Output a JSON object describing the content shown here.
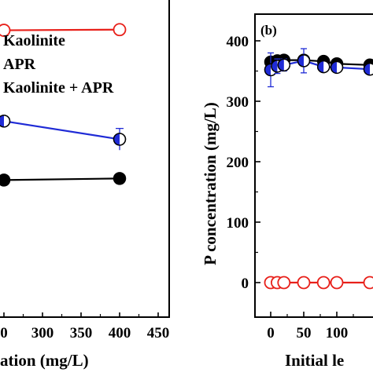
{
  "chart_data": [
    {
      "type": "line",
      "panel_label": "",
      "xlabel": "ation (mg/L)",
      "ylabel": "",
      "xlim": [
        250,
        450
      ],
      "ylim": [
        0,
        1
      ],
      "x_ticks": [
        {
          "value": 300,
          "label": "300"
        },
        {
          "value": 350,
          "label": "350"
        },
        {
          "value": 400,
          "label": "400"
        },
        {
          "value": 450,
          "label": "450"
        }
      ],
      "x_tick_partial": {
        "value": 250,
        "label": "0"
      },
      "legend": {
        "placement": "top",
        "entries": [
          "Kaolinite",
          "APR",
          "Kaolinite + APR"
        ]
      },
      "series": [
        {
          "name": "Kaolinite",
          "color": "#000000",
          "marker": "filled-circle",
          "x": [
            250,
            400
          ],
          "y": [
            0.435,
            0.44
          ],
          "error": [
            0,
            0
          ]
        },
        {
          "name": "APR",
          "color": "#e8201a",
          "marker": "open-circle",
          "x": [
            250,
            400
          ],
          "y": [
            0.905,
            0.907
          ],
          "error": [
            0,
            0
          ]
        },
        {
          "name": "Kaolinite + APR",
          "color": "#1f2bd6",
          "marker": "half-circle",
          "x": [
            250,
            400
          ],
          "y": [
            0.62,
            0.563
          ],
          "error": [
            0,
            0.034
          ]
        }
      ]
    },
    {
      "type": "line",
      "panel_label": "(b)",
      "xlabel": "Initial le",
      "ylabel": "P concentration (mg/L)",
      "xlim": [
        -15,
        150
      ],
      "ylim": [
        -50,
        450
      ],
      "x_ticks": [
        {
          "value": 0,
          "label": "0"
        },
        {
          "value": 50,
          "label": "50"
        },
        {
          "value": 100,
          "label": "100"
        }
      ],
      "y_ticks": [
        {
          "value": 0,
          "label": "0"
        },
        {
          "value": 100,
          "label": "100"
        },
        {
          "value": 200,
          "label": "200"
        },
        {
          "value": 300,
          "label": "300"
        },
        {
          "value": 400,
          "label": "400"
        }
      ],
      "series": [
        {
          "name": "Kaolinite",
          "color": "#000000",
          "marker": "filled-circle",
          "x": [
            0,
            10,
            20,
            50,
            80,
            100,
            150
          ],
          "y": [
            365,
            367,
            368,
            368,
            366,
            362,
            360
          ]
        },
        {
          "name": "APR",
          "color": "#e8201a",
          "marker": "open-circle",
          "x": [
            0,
            10,
            20,
            50,
            80,
            100,
            150
          ],
          "y": [
            0,
            0,
            0,
            0,
            0,
            0,
            0
          ]
        },
        {
          "name": "Kaolinite + APR",
          "color": "#1f2bd6",
          "marker": "half-circle",
          "x": [
            0,
            10,
            20,
            50,
            80,
            100,
            150
          ],
          "y": [
            352,
            358,
            360,
            367,
            357,
            356,
            353
          ],
          "error": [
            28,
            12,
            10,
            20,
            8,
            6,
            6
          ]
        }
      ]
    }
  ]
}
